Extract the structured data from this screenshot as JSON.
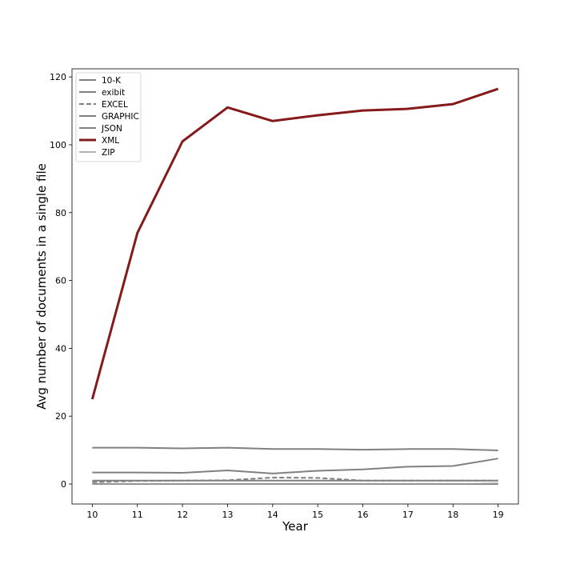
{
  "chart_data": {
    "type": "line",
    "title": "",
    "xlabel": "Year",
    "ylabel": "Avg number of documents in a single file",
    "x": [
      10,
      11,
      12,
      13,
      14,
      15,
      16,
      17,
      18,
      19
    ],
    "x_ticks": [
      "10",
      "11",
      "12",
      "13",
      "14",
      "15",
      "16",
      "17",
      "18",
      "19"
    ],
    "xlim": [
      9.55,
      19.45
    ],
    "y_ticks": [
      "0",
      "20",
      "40",
      "60",
      "80",
      "100",
      "120"
    ],
    "ylim": [
      -5.9,
      122.4
    ],
    "grid": false,
    "legend_position": "top-left",
    "series": [
      {
        "name": "10-K",
        "color": "#808080",
        "dash": "solid",
        "width": 2,
        "values": [
          10.7,
          10.7,
          10.5,
          10.7,
          10.3,
          10.3,
          10.1,
          10.3,
          10.3,
          9.9
        ]
      },
      {
        "name": "exibit",
        "color": "#808080",
        "dash": "solid",
        "width": 2,
        "values": [
          3.4,
          3.4,
          3.3,
          4.0,
          3.1,
          3.9,
          4.3,
          5.1,
          5.3,
          7.5
        ]
      },
      {
        "name": "EXCEL",
        "color": "#808080",
        "dash": "dashed",
        "width": 2,
        "values": [
          0.5,
          0.9,
          1.0,
          1.1,
          1.9,
          1.8,
          1.0,
          1.0,
          1.0,
          1.0
        ]
      },
      {
        "name": "GRAPHIC",
        "color": "#808080",
        "dash": "solid",
        "width": 2,
        "values": [
          1.0,
          1.0,
          1.0,
          1.0,
          1.0,
          1.0,
          1.0,
          1.0,
          1.0,
          1.0
        ]
      },
      {
        "name": "JSON",
        "color": "#808080",
        "dash": "solid",
        "width": 2,
        "values": [
          0.0,
          0.0,
          0.0,
          0.0,
          0.0,
          0.0,
          0.0,
          0.0,
          0.0,
          0.0
        ]
      },
      {
        "name": "XML",
        "color": "#851a1a",
        "dash": "solid",
        "width": 3,
        "values": [
          25.0,
          74.0,
          101.0,
          111.0,
          107.0,
          108.7,
          110.1,
          110.6,
          112.0,
          116.5
        ]
      },
      {
        "name": "ZIP",
        "color": "#999999",
        "dash": "solid",
        "width": 1.5,
        "values": [
          0.0,
          0.0,
          0.0,
          0.0,
          0.0,
          0.0,
          0.0,
          0.0,
          0.0,
          0.2
        ]
      }
    ]
  }
}
